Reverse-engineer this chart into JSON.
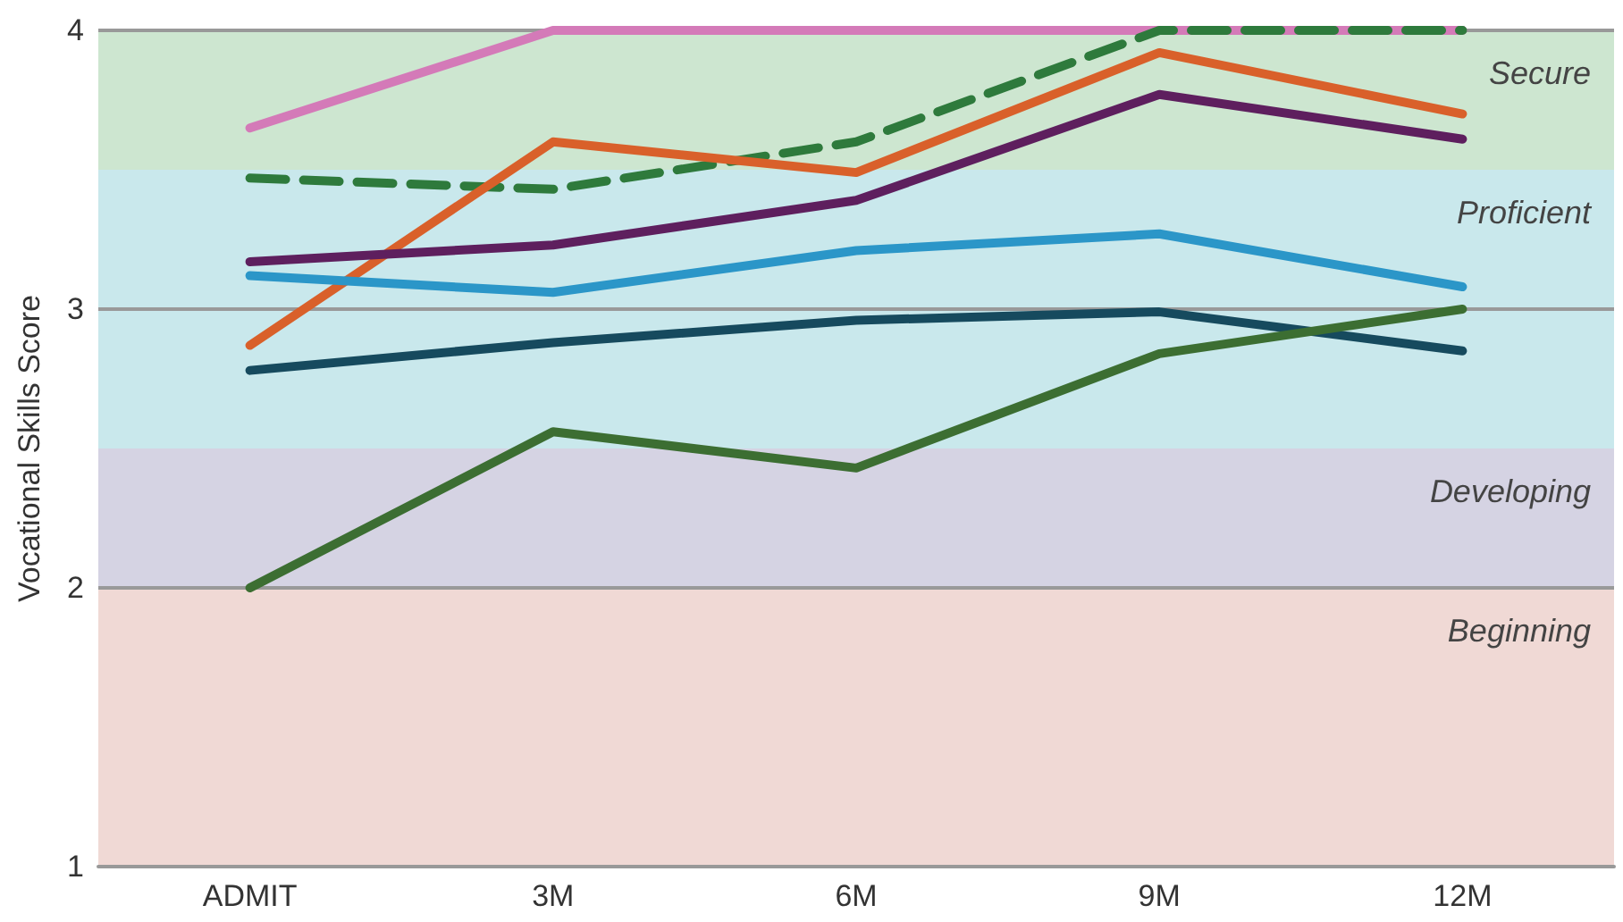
{
  "chart_data": {
    "type": "line",
    "ylabel": "Vocational Skills Score",
    "categories": [
      "ADMIT",
      "3M",
      "6M",
      "9M",
      "12M"
    ],
    "series": [
      {
        "color": "#d47ab8",
        "values": [
          3.65,
          4,
          4,
          4,
          4
        ]
      },
      {
        "color": "#2e7a3c",
        "values": [
          3.47,
          3.43,
          3.6,
          4,
          4
        ],
        "line_style": "dashed"
      },
      {
        "color": "#d9602a",
        "values": [
          2.87,
          3.6,
          3.49,
          3.92,
          3.7
        ]
      },
      {
        "color": "#5e1f5e",
        "values": [
          3.17,
          3.23,
          3.39,
          3.77,
          3.61
        ]
      },
      {
        "color": "#2b96c8",
        "values": [
          3.12,
          3.06,
          3.21,
          3.27,
          3.08
        ]
      },
      {
        "color": "#164a5e",
        "values": [
          2.78,
          2.88,
          2.96,
          2.99,
          2.85
        ]
      },
      {
        "color": "#3c6e32",
        "values": [
          2.0,
          2.56,
          2.43,
          2.84,
          3.0
        ]
      }
    ],
    "bands": [
      {
        "axis": "y",
        "from": 3.5,
        "to": 4,
        "label": "Secure",
        "color": "#cde6d0"
      },
      {
        "axis": "y",
        "from": 2.5,
        "to": 3.5,
        "label": "Proficient",
        "color": "#c9e8ec"
      },
      {
        "axis": "y",
        "from": 2,
        "to": 2.5,
        "label": "Developing",
        "color": "#d5d3e3"
      },
      {
        "axis": "y",
        "from": 1,
        "to": 2,
        "label": "Beginning",
        "color": "#f0d9d5"
      }
    ],
    "ylim": [
      1,
      4
    ],
    "yticks": [
      1,
      2,
      3,
      4
    ],
    "grid": "y",
    "marker": "none",
    "line_style": "solid"
  }
}
